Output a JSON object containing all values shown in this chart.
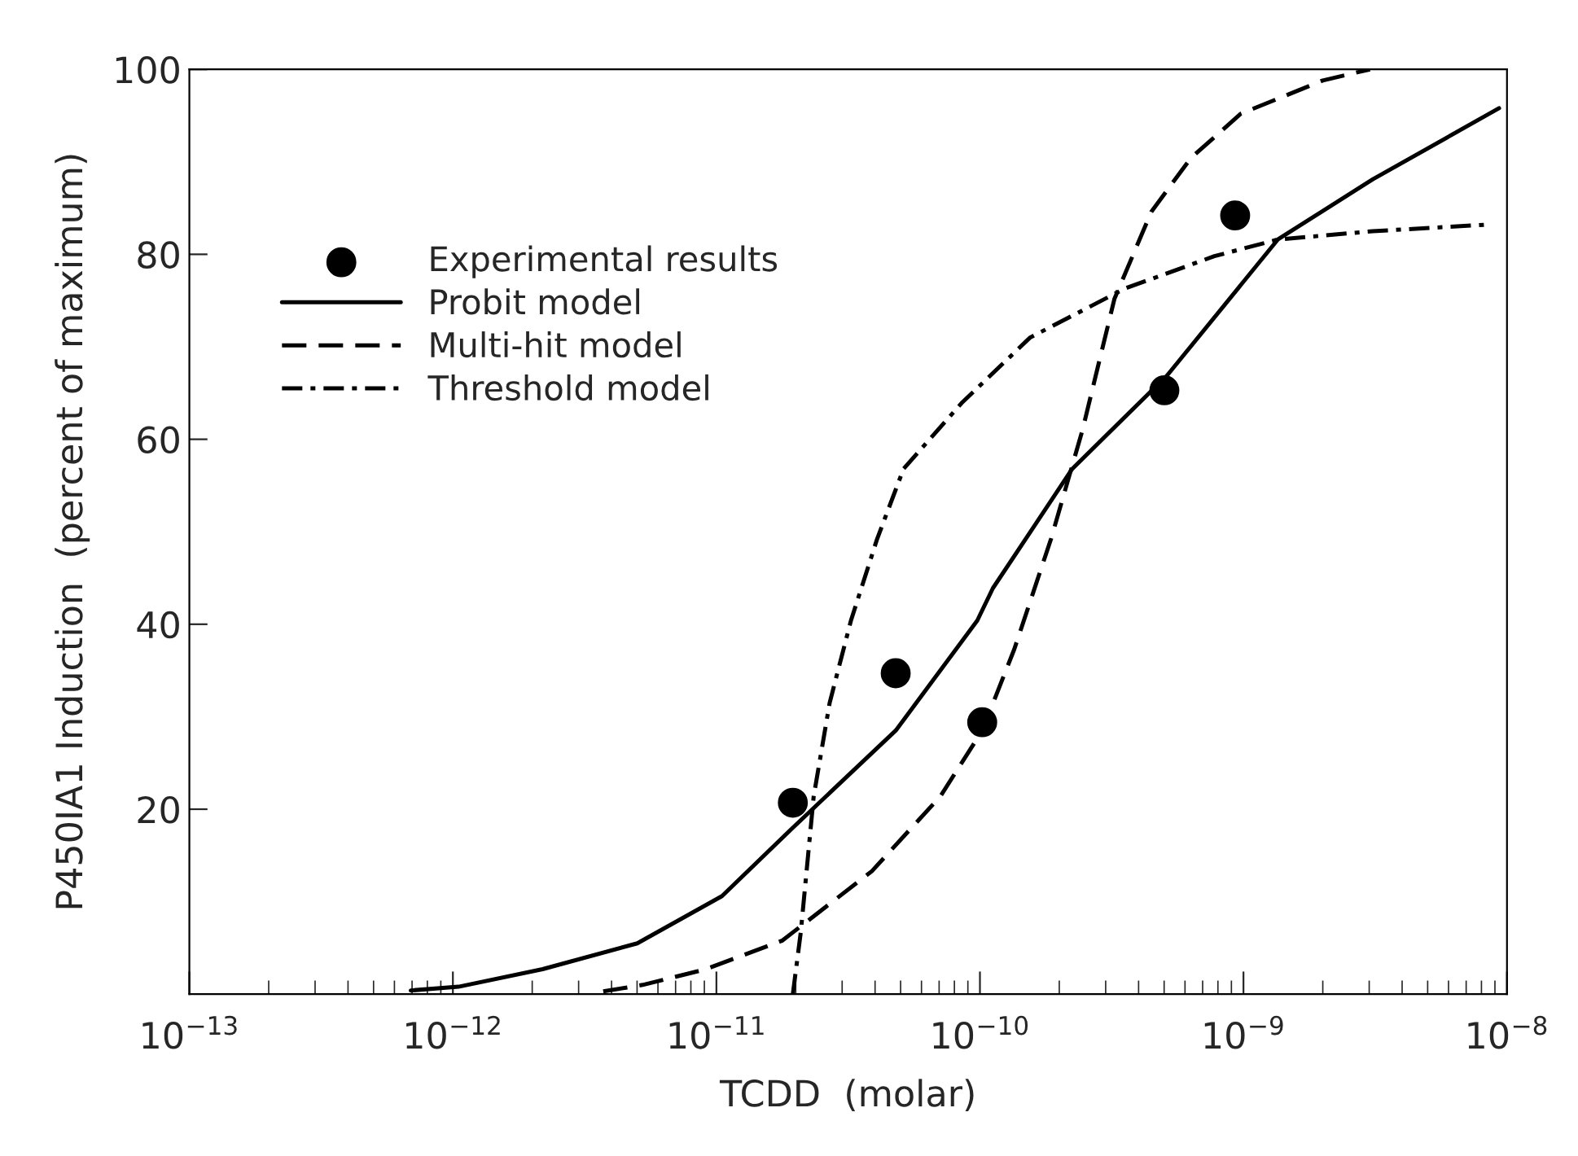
{
  "chart_data": {
    "type": "line",
    "xlabel": "TCDD  (molar)",
    "ylabel": "P450IA1 Induction  (percent of maximum)",
    "log": "x",
    "xlim": [
      1e-13,
      1e-08
    ],
    "ylim": [
      0,
      100
    ],
    "xticks": [
      {
        "value": 1e-13,
        "label": "10$^{−13}$"
      },
      {
        "value": 1e-12,
        "label": "10$^{−12}$"
      },
      {
        "value": 1e-11,
        "label": "10$^{−11}$"
      },
      {
        "value": 1e-10,
        "label": "10$^{−10}$"
      },
      {
        "value": 1e-09,
        "label": "10$^{−9}$"
      },
      {
        "value": 1e-08,
        "label": "10$^{−8}$"
      }
    ],
    "yticks": [
      20,
      40,
      60,
      80,
      100
    ],
    "grid": false,
    "legend": "top left",
    "series": [
      {
        "name": "Experimental results",
        "type": "scatter",
        "marker": "circle",
        "color": "#000000",
        "x": [
          1.95e-11,
          4.79e-11,
          1.02e-10,
          5.01e-10,
          9.3e-10
        ],
        "values": [
          20.7,
          34.7,
          29.4,
          65.3,
          84.2
        ]
      },
      {
        "name": "Probit model",
        "line_style": "solid",
        "color": "#000000",
        "x": [
          6.92e-13,
          1.05e-12,
          2.19e-12,
          5.01e-12,
          1.05e-11,
          1.95e-11,
          4.79e-11,
          9.77e-11,
          1.12e-10,
          2.24e-10,
          5.13e-10,
          1.35e-09,
          3.09e-09,
          9.33e-09
        ],
        "values": [
          0.4,
          0.8,
          2.7,
          5.5,
          10.6,
          18,
          28.5,
          40.4,
          43.9,
          56.8,
          66.9,
          81.6,
          88.1,
          95.8
        ]
      },
      {
        "name": "Multi-hit model",
        "line_style": "dashed",
        "color": "#000000",
        "x": [
          3.72e-12,
          5.25e-12,
          9.12e-12,
          1.78e-11,
          3.89e-11,
          7.08e-11,
          1.02e-10,
          1.35e-10,
          1.86e-10,
          2.45e-10,
          3.24e-10,
          4.47e-10,
          6.31e-10,
          9.77e-10,
          2e-09,
          3.02e-09
        ],
        "values": [
          0.3,
          1,
          2.7,
          5.8,
          13.3,
          21.4,
          28.5,
          37.3,
          49.2,
          61,
          75.2,
          84.6,
          90.4,
          95.2,
          98.8,
          100
        ]
      },
      {
        "name": "Threshold model",
        "line_style": "dashdot",
        "color": "#000000",
        "x": [
          1.95e-11,
          2.09e-11,
          2.34e-11,
          2.69e-11,
          3.24e-11,
          4.07e-11,
          5.13e-11,
          8.51e-11,
          1.55e-10,
          3.55e-10,
          7.76e-10,
          1.35e-09,
          3.09e-09,
          8.32e-09
        ],
        "values": [
          0,
          6.7,
          21.4,
          31.5,
          40.4,
          49.2,
          56.8,
          63.9,
          71,
          76.3,
          79.8,
          81.6,
          82.5,
          83.2
        ]
      }
    ]
  }
}
